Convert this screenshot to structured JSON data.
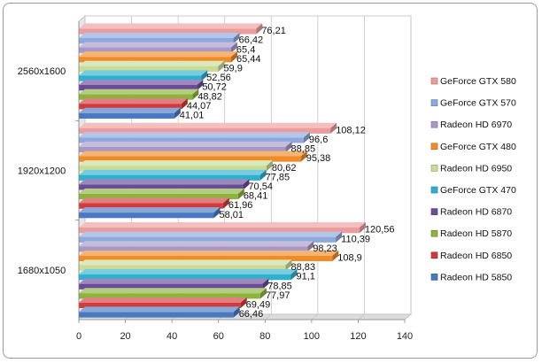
{
  "chart_data": {
    "type": "bar",
    "orientation": "horizontal",
    "style": "3d",
    "categories": [
      "1680x1050",
      "1920x1200",
      "2560x1600"
    ],
    "xlim": [
      0,
      140
    ],
    "xticks": [
      0,
      20,
      40,
      60,
      80,
      100,
      120,
      140
    ],
    "grid": true,
    "legend_position": "right",
    "series": [
      {
        "name": "Radeon HD 5850",
        "color": "#4a78c2",
        "values": [
          66.46,
          58.01,
          41.01
        ],
        "labels": [
          "66,46",
          "58,01",
          "41,01"
        ]
      },
      {
        "name": "Radeon HD 6850",
        "color": "#d23b3b",
        "values": [
          69.49,
          61.96,
          44.07
        ],
        "labels": [
          "69,49",
          "61,96",
          "44,07"
        ]
      },
      {
        "name": "Radeon HD 5870",
        "color": "#8cb43c",
        "values": [
          77.97,
          68.41,
          48.82
        ],
        "labels": [
          "77,97",
          "68,41",
          "48,82"
        ]
      },
      {
        "name": "Radeon HD 6870",
        "color": "#6a4a9a",
        "values": [
          78.85,
          70.54,
          50.72
        ],
        "labels": [
          "78,85",
          "70,54",
          "50,72"
        ]
      },
      {
        "name": "GeForce GTX 470",
        "color": "#2eb0d0",
        "values": [
          91.1,
          77.85,
          52.56
        ],
        "labels": [
          "91,1",
          "77,85",
          "52,56"
        ]
      },
      {
        "name": "Radeon HD 6950",
        "color": "#c8dc96",
        "values": [
          88.83,
          80.62,
          59.9
        ],
        "labels": [
          "88,83",
          "80,62",
          "59,9"
        ]
      },
      {
        "name": "GeForce GTX 480",
        "color": "#f08c28",
        "values": [
          108.9,
          95.38,
          65.44
        ],
        "labels": [
          "108,9",
          "95,38",
          "65,44"
        ]
      },
      {
        "name": "Radeon HD 6970",
        "color": "#a898c8",
        "values": [
          98.23,
          88.85,
          65.4
        ],
        "labels": [
          "98,23",
          "88,85",
          "65,4"
        ]
      },
      {
        "name": "GeForce GTX 570",
        "color": "#8ca8dc",
        "values": [
          110.39,
          96.6,
          66.42
        ],
        "labels": [
          "110,39",
          "96,6",
          "66,42"
        ]
      },
      {
        "name": "GeForce GTX 580",
        "color": "#ec9c9c",
        "values": [
          120.56,
          108.12,
          76.21
        ],
        "labels": [
          "120,56",
          "108,12",
          "76,21"
        ]
      }
    ]
  }
}
